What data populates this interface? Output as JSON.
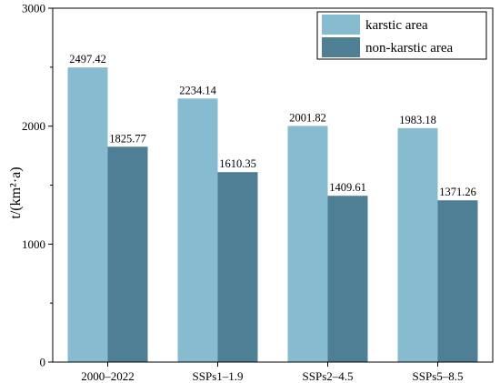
{
  "chart_data": {
    "type": "bar",
    "categories": [
      "2000–2022",
      "SSPs1–1.9",
      "SSPs2–4.5",
      "SSPs5–8.5"
    ],
    "series": [
      {
        "name": "karstic area",
        "values": [
          2497.42,
          2234.14,
          2001.82,
          1983.18
        ],
        "value_labels": [
          "2497.42",
          "2234.14",
          "2001.82",
          "1983.18"
        ],
        "color": "#86BBD0"
      },
      {
        "name": "non-karstic area",
        "values": [
          1825.77,
          1610.35,
          1409.61,
          1371.26
        ],
        "value_labels": [
          "1825.77",
          "1610.35",
          "1409.61",
          "1371.26"
        ],
        "color": "#4E7F95"
      }
    ],
    "ylabel": "t/(km²·a)",
    "xlabel": "",
    "ylim": [
      0,
      3000
    ],
    "yticks": [
      0,
      1000,
      2000,
      3000
    ],
    "grid": false,
    "legend_position": "top-right"
  }
}
